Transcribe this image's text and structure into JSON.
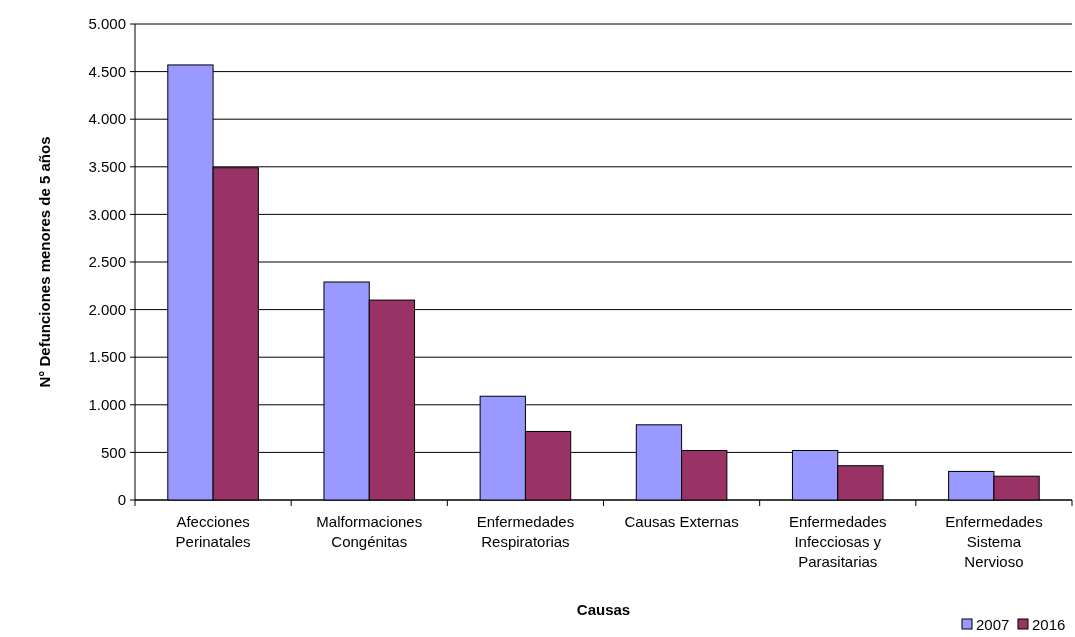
{
  "chart_data": {
    "type": "bar",
    "xlabel": "Causas",
    "ylabel": "N° Defunciones menores de 5 años",
    "categories": [
      "Afecciones Perinatales",
      "Malformaciones Congénitas",
      "Enfermedades Respiratorias",
      "Causas Externas",
      "Enfermedades Infecciosas y Parasitarias",
      "Enfermedades Sistema Nervioso"
    ],
    "series": [
      {
        "name": "2007",
        "color": "#9999ff",
        "values": [
          4570,
          2290,
          1090,
          790,
          520,
          300
        ]
      },
      {
        "name": "2016",
        "color": "#993366",
        "values": [
          3490,
          2100,
          720,
          520,
          360,
          250
        ]
      }
    ],
    "ylim": [
      0,
      5000
    ],
    "yticks": [
      {
        "value": 0,
        "label": "0"
      },
      {
        "value": 500,
        "label": "500"
      },
      {
        "value": 1000,
        "label": "1.000"
      },
      {
        "value": 1500,
        "label": "1.500"
      },
      {
        "value": 2000,
        "label": "2.000"
      },
      {
        "value": 2500,
        "label": "2.500"
      },
      {
        "value": 3000,
        "label": "3.000"
      },
      {
        "value": 3500,
        "label": "3.500"
      },
      {
        "value": 4000,
        "label": "4.000"
      },
      {
        "value": 4500,
        "label": "4.500"
      },
      {
        "value": 5000,
        "label": "5.000"
      }
    ],
    "grid": "y",
    "legend": "bottom right"
  }
}
